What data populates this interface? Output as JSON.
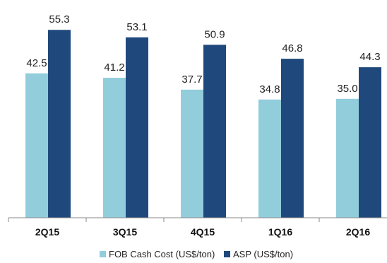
{
  "chart_data": {
    "type": "bar",
    "title": "",
    "xlabel": "",
    "ylabel": "",
    "categories": [
      "2Q15",
      "3Q15",
      "4Q15",
      "1Q16",
      "2Q16"
    ],
    "series": [
      {
        "name": "FOB Cash Cost (US$/ton)",
        "color": "#92cddc",
        "values": [
          42.5,
          41.2,
          37.7,
          34.8,
          35.0
        ],
        "labels": [
          "42.5",
          "41.2",
          "37.7",
          "34.8",
          "35.0"
        ]
      },
      {
        "name": "ASP (US$/ton)",
        "color": "#1f497d",
        "values": [
          55.3,
          53.1,
          50.9,
          46.8,
          44.3
        ],
        "labels": [
          "55.3",
          "53.1",
          "50.9",
          "46.8",
          "44.3"
        ]
      }
    ],
    "ylim": [
      0,
      56.6
    ],
    "grid": false,
    "legend_position": "bottom"
  }
}
